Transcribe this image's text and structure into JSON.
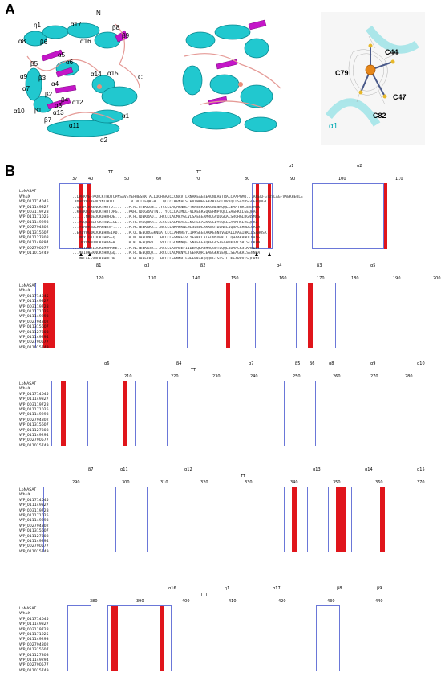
{
  "panel_a": {
    "label": "A",
    "structure_labels": [
      "η1",
      "α17",
      "N",
      "α8",
      "β6",
      "α16",
      "β8",
      "β9",
      "β5",
      "α5",
      "α6",
      "α9",
      "β3",
      "α4",
      "α14",
      "α15",
      "C",
      "α7",
      "β2",
      "β4",
      "α3",
      "α12",
      "α10",
      "β1",
      "β7",
      "α13",
      "α11",
      "α1",
      "α2"
    ],
    "active_site_labels": [
      "C44",
      "C79",
      "C47",
      "C82",
      "α1"
    ]
  },
  "panel_b": {
    "label": "B",
    "sequence_names": [
      "LpNASAT",
      "WhuX",
      "WP_011714045",
      "WP_011149327",
      "WP_003119728",
      "WP_011171025",
      "WP_011149293",
      "WP_002794802",
      "WP_011315607",
      "WP_011127308",
      "WP_011149294",
      "WP_002790577",
      "WP_011015749"
    ],
    "blocks": [
      {
        "numbers": [
          "37",
          "40",
          "50",
          "60",
          "70",
          "80",
          "90",
          "100",
          "110"
        ],
        "ss": [
          "TT",
          "TT",
          "α1",
          "α2"
        ]
      },
      {
        "numbers": [
          "120",
          "130",
          "140",
          "150",
          "160",
          "170",
          "180",
          "190",
          "200"
        ],
        "ss": [
          "β1",
          "α3",
          "β2",
          "α4",
          "β3",
          "α5"
        ]
      },
      {
        "numbers": [
          "210",
          "220",
          "230",
          "240",
          "250",
          "260",
          "270",
          "280"
        ],
        "ss": [
          "α6",
          "β4",
          "TT",
          "α7",
          "β5",
          "β6",
          "α8",
          "α9",
          "α10"
        ]
      },
      {
        "numbers": [
          "290",
          "300",
          "310",
          "320",
          "330",
          "340",
          "350",
          "360",
          "370"
        ],
        "ss": [
          "β7",
          "α11",
          "α12",
          "TT",
          "α13",
          "α14",
          "α15"
        ]
      },
      {
        "numbers": [
          "380",
          "390",
          "400",
          "410",
          "420",
          "430",
          "440"
        ],
        "ss": [
          "α16",
          "η1",
          "α17",
          "β8",
          "β9",
          "TTT"
        ]
      }
    ],
    "seq_rows": [
      [
        "LpNASAT",
        "..LPHKVEFPKNCKTHDTCPNSAVEYEHNESRKTALLQGHGAACCCNAVTLRNAKEAEKEAGNLAETRALCPAPGMQ...AKEKFGTDSLAGFVAEKHEQLE"
      ],
      [
        "WhuX",
        ".KMHNYQIRENCYNLHDTC.......P.NLTTEQKGR...QCCCLKPNALSCHVIWHHEEKAKAGGLNVKQLLSAYDSGLEKQNGK"
      ],
      [
        "WP_011714045",
        "..QGVPIKRENCKTHDTD.......P.RLTTEKKGN...YCCCLAQMRNHLFTKHEEKAEKGNLNRQQLLEAATHRLESSMGKT"
      ],
      [
        "WP_011149327",
        "..KHEKQIRENCKTHDTDPG.....PKHLTDQGRAVTN...YCCCLAIMKLFVLKEEKSQKEHNPTQLLSASRKLLGEQHAG"
      ],
      [
        "WP_003119728",
        "......MKQEDCKDHDHDE......P.HLTDEKRAQ...HCCCLAQMRYGLVLSAEEEAMRQGVDLGKALSRCHGLDGNSMAS"
      ],
      [
        "WP_011171025",
        "...MVQKIKETCKTHNSEGE.....P.RLTAQQRKR...CCCCLKEMHALLENSHEEAGKKGLDYSQLLSAAKHSLVEQHKL"
      ],
      [
        "WP_011149293",
        "...MVAQKEDCKAHNDSF.......P.HLTEEKRKK...NCCCLNKMHKNLWLSLEDLAKKEGTDLNELIQSACLHRDLGRSA"
      ],
      [
        "WP_002794802",
        "..EMIYPGQKDCKEHDEIAD.....P.QLTEEQRGGKNLATCCCLAHMREYLIPKSEEKAKKEGNTVADALLNAAIHKLDSAHQSK"
      ],
      [
        "WP_011315607",
        "...MKYIQKIDCKTHDSEQ......P.NLTAEDRKK...HCCCLSVMHEFVLYEEKKLALEGNSDRKTLLQHAAKRNDLNASG"
      ],
      [
        "WP_011127308",
        "....MYVNKDNCKLHDASR......P.KLTEEQRRK...VCCCLGLMNNQFLSNAEEEAQKHGVSAEEWIKDACSRLSLDKHN"
      ],
      [
        "WP_011149294",
        "...MIYEGEIDCKLHDHAKE.....P.NLTEEKRSK...ACCCLKNMGEFIIDENQKASHRQGQTLQQLVDAACKSLKHNDLT"
      ],
      [
        "WP_002790577",
        "...MYIQKEKNCKSHDQGQ......P.RLTEEQRQK...RCCCLAQMRNVLTGEHKQRCEAEGKKVEQLLSEAGKRLSENNHA"
      ],
      [
        "WP_011015749",
        "...MKLAEEVNCKEHDLDP......P.HLTAEEKKQ...HCCCLSRMNRIFHEEWKAKQQQNGTSLSTLLKEARRVISQDRNT"
      ]
    ]
  }
}
